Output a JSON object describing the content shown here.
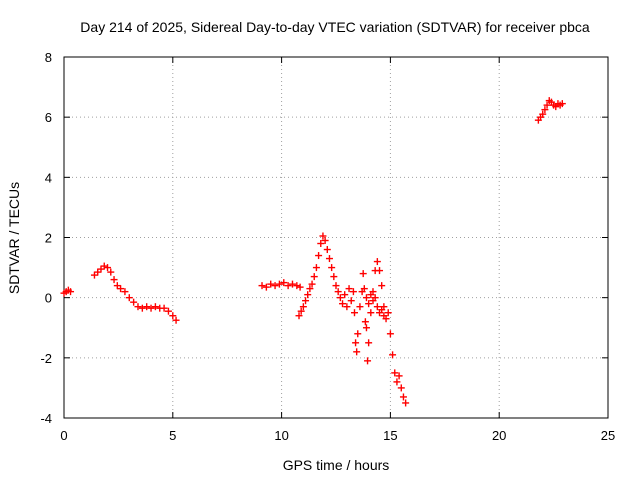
{
  "chart_data": {
    "type": "scatter",
    "title": "Day 214 of 2025, Sidereal Day-to-day VTEC variation (SDTVAR) for receiver pbca",
    "xlabel": "GPS time / hours",
    "ylabel": "SDTVAR / TECUs",
    "xlim": [
      0,
      25
    ],
    "ylim": [
      -4,
      8
    ],
    "xticks": [
      "0",
      "5",
      "10",
      "15",
      "20",
      "25"
    ],
    "yticks": [
      "-4",
      "-2",
      "0",
      "2",
      "4",
      "6",
      "8"
    ],
    "xtick_values": [
      0,
      5,
      10,
      15,
      20,
      25
    ],
    "ytick_values": [
      -4,
      -2,
      0,
      2,
      4,
      6,
      8
    ],
    "grid": true,
    "marker": "plus",
    "color": "#ff0000",
    "series": [
      {
        "name": "SDTVAR",
        "points": [
          [
            0.0,
            0.15
          ],
          [
            0.1,
            0.2
          ],
          [
            0.2,
            0.25
          ],
          [
            0.3,
            0.2
          ],
          [
            1.4,
            0.75
          ],
          [
            1.55,
            0.85
          ],
          [
            1.7,
            0.95
          ],
          [
            1.85,
            1.05
          ],
          [
            2.0,
            1.0
          ],
          [
            2.15,
            0.85
          ],
          [
            2.3,
            0.6
          ],
          [
            2.45,
            0.4
          ],
          [
            2.6,
            0.3
          ],
          [
            2.8,
            0.2
          ],
          [
            3.0,
            0.0
          ],
          [
            3.2,
            -0.15
          ],
          [
            3.4,
            -0.3
          ],
          [
            3.6,
            -0.35
          ],
          [
            3.8,
            -0.3
          ],
          [
            4.0,
            -0.35
          ],
          [
            4.2,
            -0.3
          ],
          [
            4.4,
            -0.35
          ],
          [
            4.6,
            -0.35
          ],
          [
            4.8,
            -0.45
          ],
          [
            5.0,
            -0.6
          ],
          [
            5.15,
            -0.75
          ],
          [
            9.1,
            0.4
          ],
          [
            9.3,
            0.35
          ],
          [
            9.5,
            0.45
          ],
          [
            9.7,
            0.4
          ],
          [
            9.9,
            0.45
          ],
          [
            10.1,
            0.5
          ],
          [
            10.3,
            0.4
          ],
          [
            10.5,
            0.45
          ],
          [
            10.7,
            0.4
          ],
          [
            10.85,
            0.35
          ],
          [
            10.8,
            -0.6
          ],
          [
            10.9,
            -0.45
          ],
          [
            11.0,
            -0.3
          ],
          [
            11.1,
            -0.1
          ],
          [
            11.2,
            0.1
          ],
          [
            11.3,
            0.3
          ],
          [
            11.4,
            0.45
          ],
          [
            11.5,
            0.7
          ],
          [
            11.6,
            1.0
          ],
          [
            11.7,
            1.4
          ],
          [
            11.8,
            1.8
          ],
          [
            11.9,
            2.05
          ],
          [
            12.0,
            1.9
          ],
          [
            12.1,
            1.6
          ],
          [
            12.2,
            1.3
          ],
          [
            12.3,
            1.0
          ],
          [
            12.4,
            0.7
          ],
          [
            12.5,
            0.4
          ],
          [
            12.6,
            0.2
          ],
          [
            12.7,
            0.0
          ],
          [
            12.8,
            -0.2
          ],
          [
            12.9,
            0.1
          ],
          [
            13.0,
            -0.3
          ],
          [
            13.1,
            0.3
          ],
          [
            13.2,
            -0.1
          ],
          [
            13.3,
            0.2
          ],
          [
            13.35,
            -0.5
          ],
          [
            13.4,
            -1.5
          ],
          [
            13.45,
            -1.8
          ],
          [
            13.5,
            -1.2
          ],
          [
            13.6,
            -0.3
          ],
          [
            13.7,
            0.2
          ],
          [
            13.75,
            0.8
          ],
          [
            13.8,
            0.3
          ],
          [
            13.85,
            -0.8
          ],
          [
            13.9,
            -1.0
          ],
          [
            13.95,
            -2.1
          ],
          [
            14.0,
            -1.5
          ],
          [
            14.1,
            -0.5
          ],
          [
            14.2,
            0.2
          ],
          [
            14.3,
            0.9
          ],
          [
            14.4,
            1.2
          ],
          [
            14.5,
            0.9
          ],
          [
            14.6,
            0.4
          ],
          [
            14.7,
            -0.3
          ],
          [
            14.8,
            -0.7
          ],
          [
            14.9,
            -0.5
          ],
          [
            15.0,
            -1.2
          ],
          [
            15.1,
            -1.9
          ],
          [
            15.2,
            -2.5
          ],
          [
            15.3,
            -2.8
          ],
          [
            15.4,
            -2.6
          ],
          [
            15.5,
            -3.0
          ],
          [
            15.6,
            -3.3
          ],
          [
            15.7,
            -3.5
          ],
          [
            13.9,
            0.0
          ],
          [
            14.0,
            -0.2
          ],
          [
            14.1,
            0.1
          ],
          [
            14.2,
            -0.1
          ],
          [
            14.3,
            0.0
          ],
          [
            14.4,
            -0.3
          ],
          [
            14.5,
            -0.5
          ],
          [
            14.6,
            -0.4
          ],
          [
            14.7,
            -0.6
          ],
          [
            21.8,
            5.9
          ],
          [
            21.9,
            6.0
          ],
          [
            22.0,
            6.1
          ],
          [
            22.1,
            6.25
          ],
          [
            22.2,
            6.4
          ],
          [
            22.3,
            6.55
          ],
          [
            22.4,
            6.5
          ],
          [
            22.5,
            6.4
          ],
          [
            22.6,
            6.35
          ],
          [
            22.7,
            6.45
          ],
          [
            22.8,
            6.4
          ],
          [
            22.9,
            6.45
          ]
        ]
      }
    ]
  }
}
